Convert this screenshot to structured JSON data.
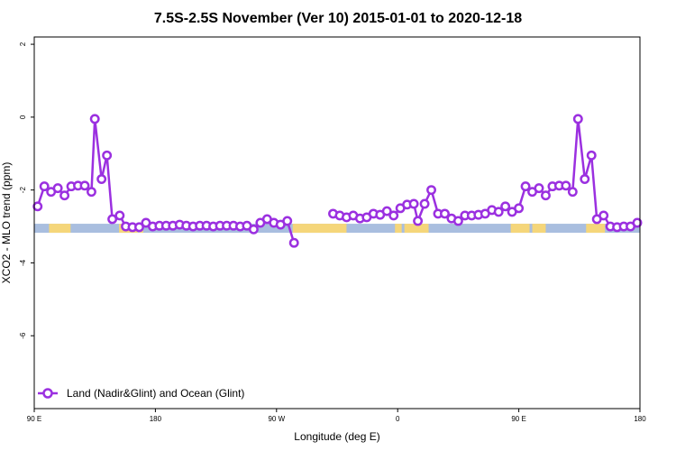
{
  "chart_data": {
    "type": "line",
    "title": "7.5S-2.5S November (Ver 10)   2015-01-01 to 2020-12-18",
    "xlabel": "Longitude (deg E)",
    "ylabel": "XCO2 - MLO trend (ppm)",
    "xlim": [
      90,
      540
    ],
    "ylim": [
      -8,
      2.2
    ],
    "x_ticks": [
      {
        "value": 90,
        "label": "90 E"
      },
      {
        "value": 180,
        "label": "180"
      },
      {
        "value": 270,
        "label": "90 W"
      },
      {
        "value": 360,
        "label": "0"
      },
      {
        "value": 450,
        "label": "90 E"
      },
      {
        "value": 540,
        "label": "180"
      }
    ],
    "y_ticks": [
      {
        "value": 2,
        "label": "2"
      },
      {
        "value": 0,
        "label": "0"
      },
      {
        "value": -2,
        "label": "-2"
      },
      {
        "value": -4,
        "label": "-4"
      },
      {
        "value": -6,
        "label": "-6"
      }
    ],
    "grid": false,
    "legend_position": "bottom-left",
    "land_ocean_strip": {
      "y": -3.05,
      "land_color": "#f5d67a",
      "ocean_color": "#a9bedf",
      "land_segments": [
        [
          101,
          117
        ],
        [
          153,
          167
        ],
        [
          168,
          171
        ],
        [
          282,
          322
        ],
        [
          358,
          363
        ],
        [
          365,
          383
        ],
        [
          444,
          458
        ],
        [
          460,
          470
        ],
        [
          500,
          514
        ]
      ]
    },
    "series": [
      {
        "name": "Land (Nadir&Glint) and Ocean (Glint)",
        "color": "#9b30e0",
        "segments": [
          [
            [
              92.5,
              -2.45
            ],
            [
              97.5,
              -1.9
            ],
            [
              102.5,
              -2.05
            ],
            [
              107.5,
              -1.95
            ],
            [
              112.5,
              -2.15
            ],
            [
              117.5,
              -1.9
            ],
            [
              122.5,
              -1.88
            ],
            [
              127.5,
              -1.88
            ],
            [
              132.5,
              -2.05
            ],
            [
              135,
              -0.05
            ],
            [
              140,
              -1.7
            ],
            [
              144,
              -1.05
            ],
            [
              148,
              -2.8
            ],
            [
              153.5,
              -2.7
            ],
            [
              158,
              -3.0
            ],
            [
              163,
              -3.02
            ],
            [
              168,
              -3.02
            ],
            [
              173,
              -2.9
            ],
            [
              178,
              -3.0
            ],
            [
              183,
              -2.98
            ],
            [
              188,
              -2.98
            ],
            [
              193,
              -2.98
            ],
            [
              198,
              -2.95
            ],
            [
              203,
              -2.98
            ],
            [
              208,
              -3.0
            ],
            [
              213,
              -2.98
            ],
            [
              218,
              -2.98
            ],
            [
              223,
              -3.0
            ],
            [
              228,
              -2.98
            ],
            [
              233,
              -2.98
            ],
            [
              238,
              -2.98
            ],
            [
              243,
              -3.0
            ],
            [
              248,
              -2.98
            ],
            [
              253,
              -3.08
            ],
            [
              258,
              -2.9
            ],
            [
              263,
              -2.8
            ],
            [
              268,
              -2.9
            ],
            [
              273,
              -2.95
            ],
            [
              278,
              -2.85
            ],
            [
              283,
              -3.45
            ]
          ],
          [
            [
              312,
              -2.65
            ],
            [
              317,
              -2.7
            ],
            [
              322,
              -2.75
            ],
            [
              327,
              -2.7
            ],
            [
              332,
              -2.78
            ],
            [
              337,
              -2.75
            ],
            [
              342,
              -2.65
            ],
            [
              347,
              -2.68
            ],
            [
              352,
              -2.58
            ],
            [
              357,
              -2.7
            ],
            [
              362,
              -2.5
            ],
            [
              367,
              -2.4
            ],
            [
              372,
              -2.38
            ],
            [
              375,
              -2.85
            ],
            [
              380,
              -2.38
            ],
            [
              385,
              -2.0
            ],
            [
              390,
              -2.65
            ],
            [
              395,
              -2.65
            ],
            [
              400,
              -2.78
            ],
            [
              405,
              -2.85
            ],
            [
              410,
              -2.7
            ],
            [
              415,
              -2.7
            ],
            [
              420,
              -2.68
            ],
            [
              425,
              -2.65
            ],
            [
              430,
              -2.55
            ],
            [
              435,
              -2.6
            ],
            [
              440,
              -2.45
            ],
            [
              445,
              -2.6
            ],
            [
              450,
              -2.5
            ],
            [
              455,
              -1.9
            ],
            [
              460,
              -2.05
            ],
            [
              465,
              -1.95
            ],
            [
              470,
              -2.15
            ],
            [
              475,
              -1.9
            ],
            [
              480,
              -1.88
            ],
            [
              485,
              -1.88
            ],
            [
              490,
              -2.05
            ],
            [
              494,
              -0.05
            ],
            [
              499,
              -1.7
            ],
            [
              504,
              -1.05
            ],
            [
              508,
              -2.8
            ],
            [
              513,
              -2.7
            ],
            [
              518,
              -3.0
            ],
            [
              523,
              -3.02
            ],
            [
              528,
              -3.0
            ],
            [
              533,
              -3.0
            ],
            [
              538,
              -2.9
            ]
          ]
        ]
      }
    ]
  }
}
